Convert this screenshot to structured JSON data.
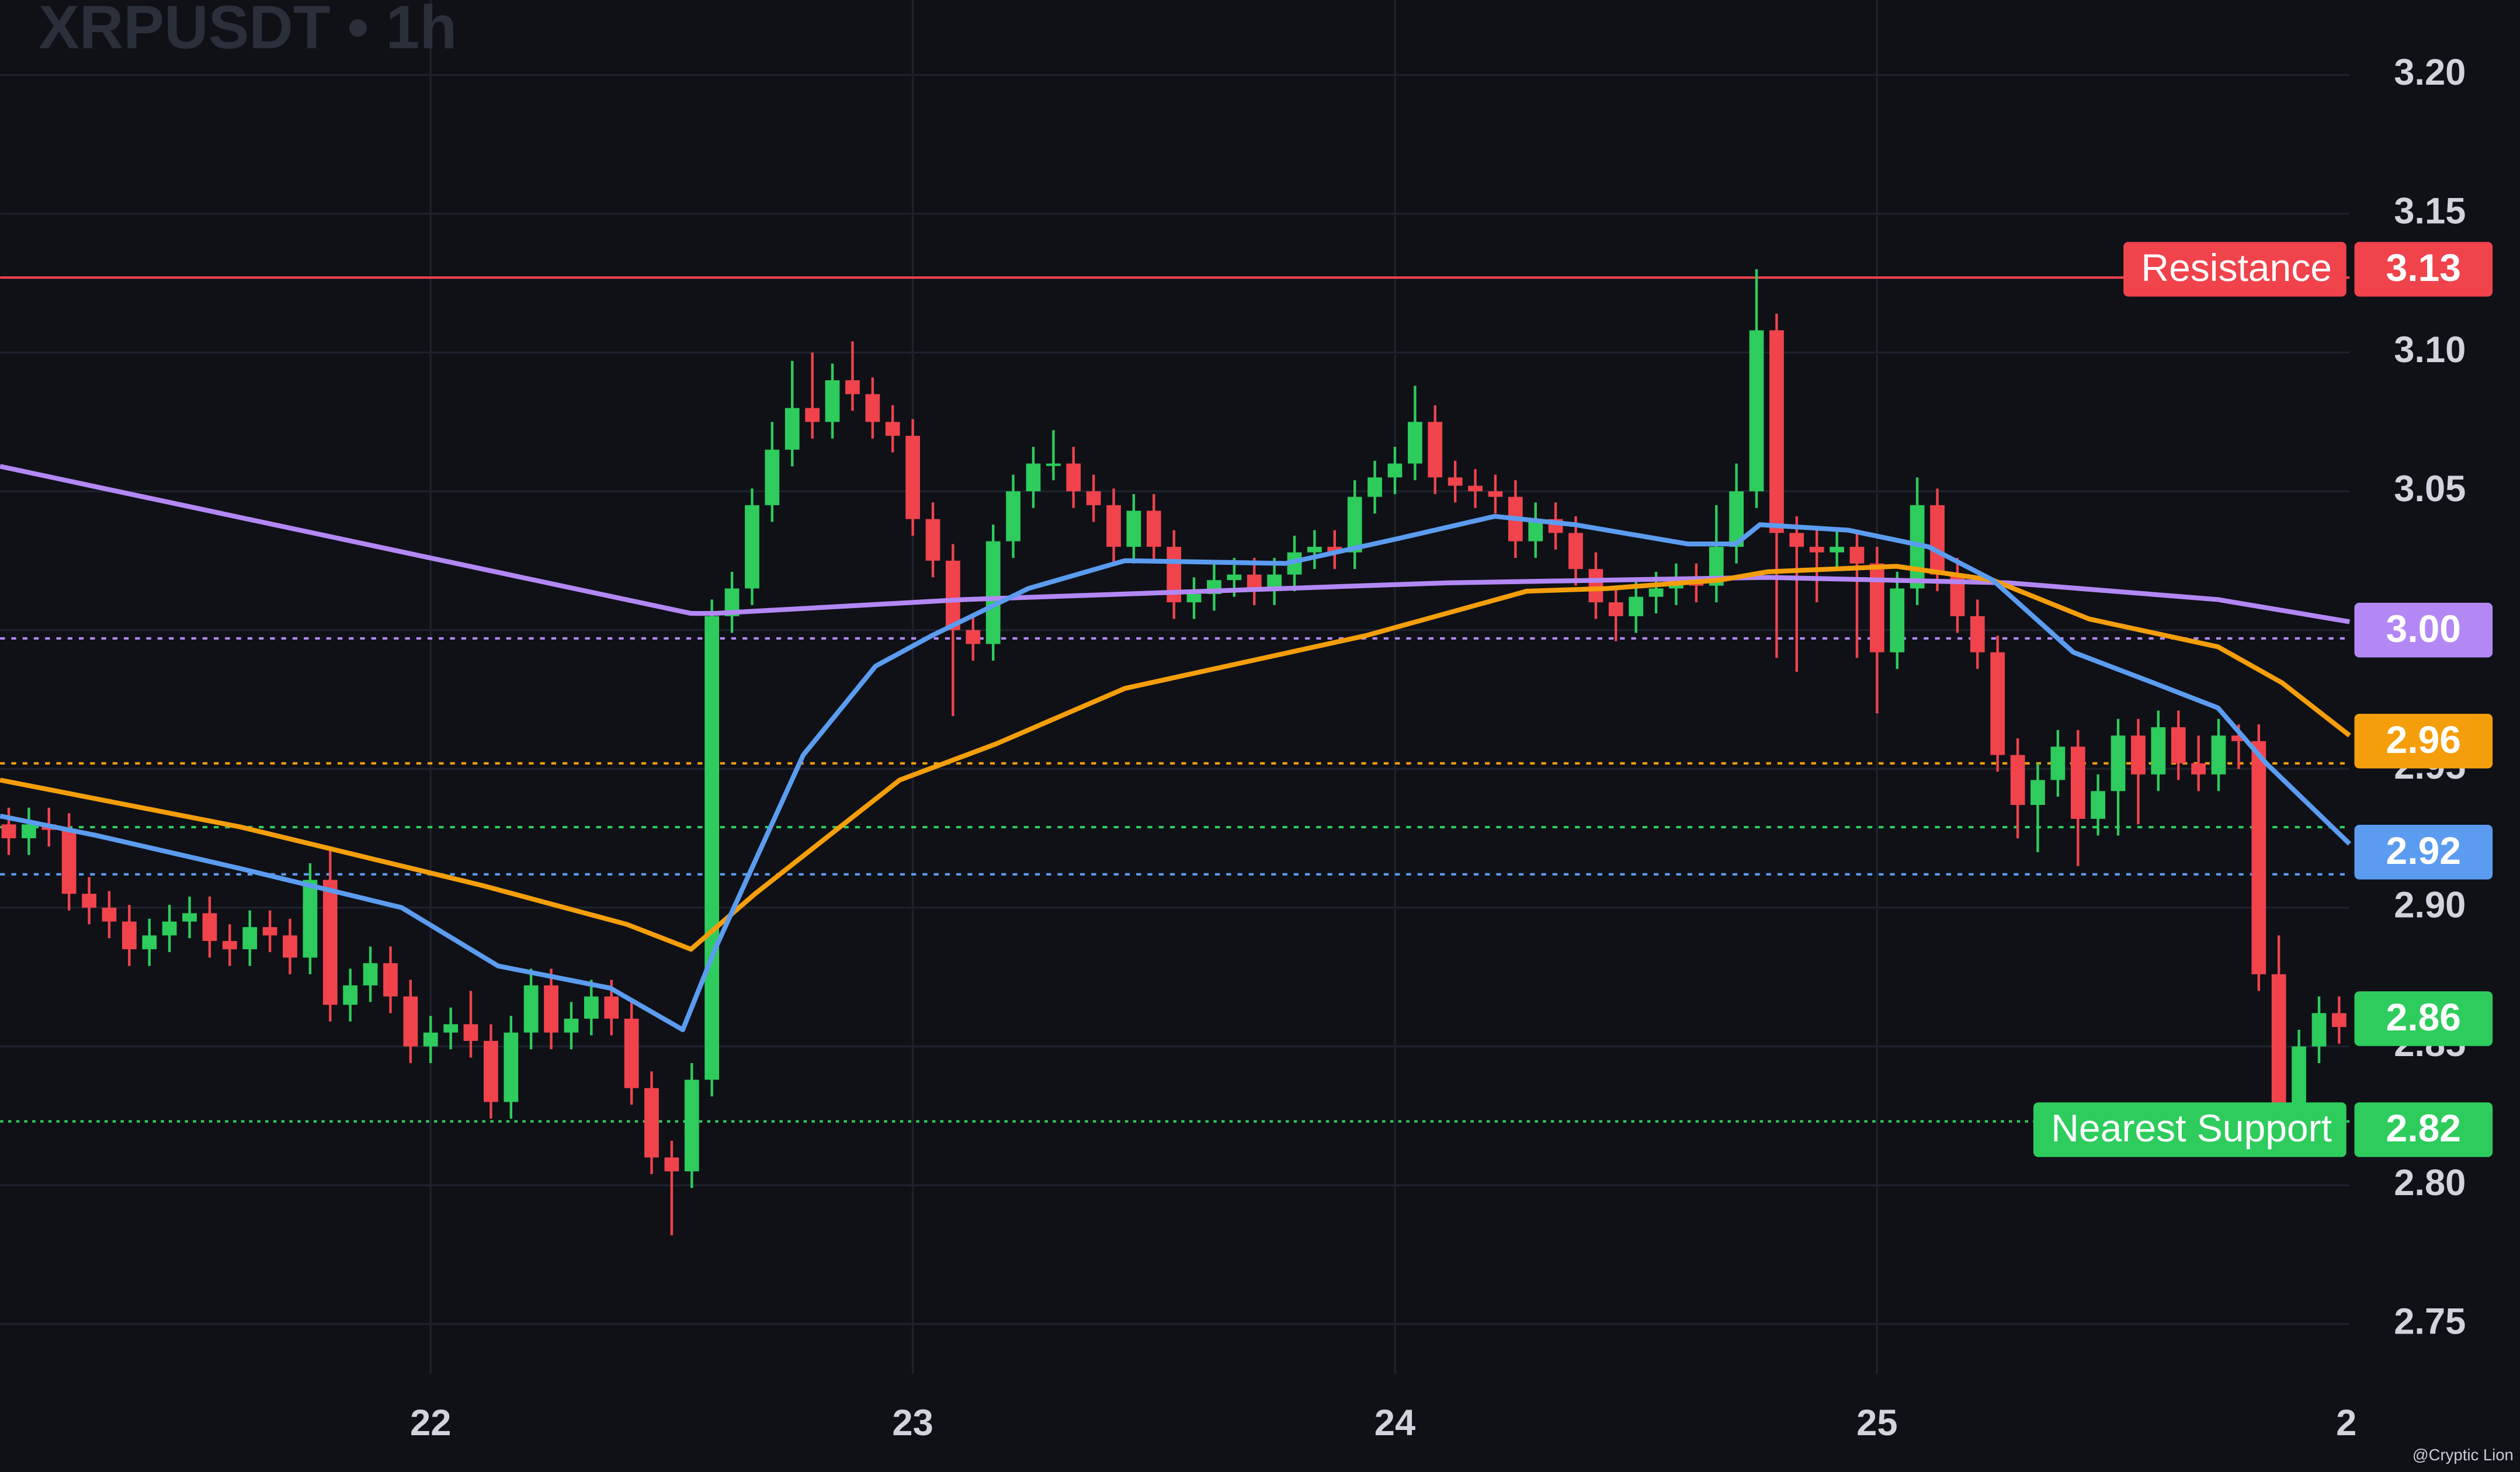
{
  "chart_data": {
    "type": "candlestick",
    "title": "XRPUSDT • 1h",
    "watermark": "@Cryptic Lion",
    "up_color": "#2ecc5c",
    "down_color": "#f0434c",
    "grid": true,
    "xlim": [
      21.107,
      25.98
    ],
    "xticks": [
      22,
      23,
      24,
      25,
      {
        "value": 26,
        "label": "2"
      }
    ],
    "ylim": [
      2.732,
      3.227
    ],
    "yticks": [
      2.75,
      {
        "value": 2.8,
        "label": "2.80"
      },
      2.85,
      {
        "value": 2.9,
        "label": "2.90"
      },
      2.95,
      {
        "value": 3,
        "label": "3.00"
      },
      3.05,
      {
        "value": 3.1,
        "label": "3.10"
      },
      3.15,
      {
        "value": 3.2,
        "label": "3.20"
      }
    ],
    "x": [
      21.125,
      21.1667,
      21.2083,
      21.25,
      21.2917,
      21.3333,
      21.375,
      21.4167,
      21.4583,
      21.5,
      21.5417,
      21.5833,
      21.625,
      21.6667,
      21.7083,
      21.75,
      21.7917,
      21.8333,
      21.875,
      21.9167,
      21.9583,
      22,
      22.0417,
      22.0833,
      22.125,
      22.1667,
      22.2083,
      22.25,
      22.2917,
      22.3333,
      22.375,
      22.4167,
      22.4583,
      22.5,
      22.5417,
      22.5833,
      22.625,
      22.6667,
      22.7083,
      22.75,
      22.7917,
      22.8333,
      22.875,
      22.9167,
      22.9583,
      23,
      23.0417,
      23.0833,
      23.125,
      23.1667,
      23.2083,
      23.25,
      23.2917,
      23.3333,
      23.375,
      23.4167,
      23.4583,
      23.5,
      23.5417,
      23.5833,
      23.625,
      23.6667,
      23.7083,
      23.75,
      23.7917,
      23.8333,
      23.875,
      23.9167,
      23.9583,
      24,
      24.0417,
      24.0833,
      24.125,
      24.1667,
      24.2083,
      24.25,
      24.2917,
      24.3333,
      24.375,
      24.4167,
      24.4583,
      24.5,
      24.5417,
      24.5833,
      24.625,
      24.6667,
      24.7083,
      24.75,
      24.7917,
      24.8333,
      24.875,
      24.9167,
      24.9583,
      25,
      25.0417,
      25.0833,
      25.125,
      25.1667,
      25.2083,
      25.25,
      25.2917,
      25.3333,
      25.375,
      25.4167,
      25.4583,
      25.5,
      25.5417,
      25.5833,
      25.625,
      25.6667,
      25.7083,
      25.75,
      25.7917,
      25.8333,
      25.875,
      25.9167,
      25.9583
    ],
    "open": [
      2.93,
      2.925,
      2.93,
      2.928,
      2.905,
      2.9,
      2.895,
      2.885,
      2.89,
      2.895,
      2.898,
      2.888,
      2.885,
      2.893,
      2.89,
      2.882,
      2.91,
      2.865,
      2.872,
      2.88,
      2.868,
      2.85,
      2.855,
      2.858,
      2.852,
      2.83,
      2.855,
      2.872,
      2.855,
      2.86,
      2.868,
      2.86,
      2.835,
      2.81,
      2.805,
      2.838,
      3.005,
      3.015,
      3.045,
      3.065,
      3.08,
      3.075,
      3.09,
      3.085,
      3.075,
      3.07,
      3.04,
      3.025,
      3.0,
      2.995,
      3.032,
      3.05,
      3.06,
      3.06,
      3.05,
      3.045,
      3.03,
      3.043,
      3.03,
      3.01,
      3.013,
      3.018,
      3.02,
      3.015,
      3.02,
      3.028,
      3.03,
      3.028,
      3.048,
      3.055,
      3.06,
      3.075,
      3.055,
      3.052,
      3.05,
      3.048,
      3.032,
      3.04,
      3.035,
      3.022,
      3.01,
      3.005,
      3.012,
      3.015,
      3.018,
      3.016,
      3.03,
      3.05,
      3.108,
      3.035,
      3.03,
      3.028,
      3.03,
      3.024,
      2.992,
      3.015,
      3.045,
      3.02,
      3.005,
      2.992,
      2.955,
      2.937,
      2.946,
      2.958,
      2.932,
      2.942,
      2.962,
      2.948,
      2.965,
      2.952,
      2.948,
      2.962,
      2.96,
      2.876,
      2.827,
      2.85,
      2.862
    ],
    "high": [
      2.936,
      2.936,
      2.936,
      2.934,
      2.911,
      2.906,
      2.901,
      2.896,
      2.901,
      2.904,
      2.904,
      2.894,
      2.899,
      2.899,
      2.896,
      2.916,
      2.921,
      2.878,
      2.886,
      2.886,
      2.874,
      2.861,
      2.864,
      2.87,
      2.858,
      2.861,
      2.878,
      2.878,
      2.866,
      2.874,
      2.874,
      2.866,
      2.841,
      2.816,
      2.844,
      3.011,
      3.021,
      3.051,
      3.075,
      3.097,
      3.1,
      3.096,
      3.104,
      3.091,
      3.081,
      3.076,
      3.046,
      3.031,
      3.006,
      3.038,
      3.056,
      3.066,
      3.072,
      3.066,
      3.056,
      3.051,
      3.049,
      3.049,
      3.036,
      3.019,
      3.024,
      3.026,
      3.026,
      3.026,
      3.034,
      3.036,
      3.036,
      3.054,
      3.061,
      3.066,
      3.088,
      3.081,
      3.061,
      3.058,
      3.056,
      3.054,
      3.046,
      3.046,
      3.041,
      3.028,
      3.016,
      3.018,
      3.021,
      3.024,
      3.024,
      3.045,
      3.06,
      3.13,
      3.114,
      3.041,
      3.036,
      3.036,
      3.036,
      3.03,
      3.021,
      3.055,
      3.051,
      3.026,
      3.011,
      2.998,
      2.961,
      2.952,
      2.964,
      2.964,
      2.948,
      2.968,
      2.968,
      2.971,
      2.971,
      2.962,
      2.968,
      2.966,
      2.966,
      2.89,
      2.856,
      2.868,
      2.868
    ],
    "low": [
      2.919,
      2.919,
      2.922,
      2.899,
      2.894,
      2.889,
      2.879,
      2.879,
      2.884,
      2.889,
      2.882,
      2.879,
      2.879,
      2.884,
      2.876,
      2.876,
      2.859,
      2.859,
      2.866,
      2.862,
      2.844,
      2.844,
      2.849,
      2.846,
      2.824,
      2.824,
      2.849,
      2.849,
      2.849,
      2.854,
      2.854,
      2.829,
      2.804,
      2.782,
      2.799,
      2.832,
      2.999,
      3.009,
      3.039,
      3.059,
      3.069,
      3.069,
      3.079,
      3.069,
      3.064,
      3.034,
      3.019,
      2.969,
      2.989,
      2.989,
      3.026,
      3.044,
      3.054,
      3.044,
      3.039,
      3.024,
      3.024,
      3.024,
      3.004,
      3.004,
      3.007,
      3.012,
      3.009,
      3.009,
      3.014,
      3.022,
      3.022,
      3.022,
      3.042,
      3.049,
      3.054,
      3.049,
      3.046,
      3.044,
      3.042,
      3.026,
      3.026,
      3.029,
      3.016,
      3.004,
      2.996,
      2.999,
      3.006,
      3.009,
      3.01,
      3.01,
      3.024,
      3.044,
      2.99,
      2.985,
      3.01,
      3.022,
      2.99,
      2.97,
      2.986,
      3.009,
      3.014,
      2.999,
      2.986,
      2.949,
      2.925,
      2.92,
      2.94,
      2.915,
      2.926,
      2.926,
      2.93,
      2.942,
      2.946,
      2.942,
      2.942,
      2.95,
      2.87,
      2.815,
      2.821,
      2.844,
      2.851
    ],
    "close": [
      2.925,
      2.93,
      2.928,
      2.905,
      2.9,
      2.895,
      2.885,
      2.89,
      2.895,
      2.898,
      2.888,
      2.885,
      2.893,
      2.89,
      2.882,
      2.91,
      2.865,
      2.872,
      2.88,
      2.868,
      2.85,
      2.855,
      2.858,
      2.852,
      2.83,
      2.855,
      2.872,
      2.855,
      2.86,
      2.868,
      2.86,
      2.835,
      2.81,
      2.805,
      2.838,
      3.005,
      3.015,
      3.045,
      3.065,
      3.08,
      3.075,
      3.09,
      3.085,
      3.075,
      3.07,
      3.04,
      3.025,
      3.0,
      2.995,
      3.032,
      3.05,
      3.06,
      3.06,
      3.05,
      3.045,
      3.03,
      3.043,
      3.03,
      3.01,
      3.013,
      3.018,
      3.02,
      3.015,
      3.02,
      3.028,
      3.03,
      3.028,
      3.048,
      3.055,
      3.06,
      3.075,
      3.055,
      3.052,
      3.05,
      3.048,
      3.032,
      3.04,
      3.035,
      3.022,
      3.01,
      3.005,
      3.012,
      3.015,
      3.018,
      3.016,
      3.03,
      3.05,
      3.108,
      3.035,
      3.03,
      3.028,
      3.03,
      3.024,
      2.992,
      3.015,
      3.045,
      3.02,
      3.005,
      2.992,
      2.955,
      2.937,
      2.946,
      2.958,
      2.932,
      2.942,
      2.962,
      2.948,
      2.965,
      2.952,
      2.948,
      2.962,
      2.96,
      2.876,
      2.827,
      2.85,
      2.862,
      2.857
    ],
    "lines": [
      {
        "color": "#b388f5",
        "x": [
          21.107,
          22.54,
          22.59,
          23.107,
          24.107,
          24.773,
          25.273,
          25.707,
          25.98
        ],
        "values": [
          3.059,
          3.006,
          3.006,
          3.011,
          3.017,
          3.019,
          3.017,
          3.011,
          3.003
        ]
      },
      {
        "color": "#f59e0b",
        "x": [
          21.107,
          21.607,
          22.107,
          22.407,
          22.54,
          22.673,
          22.973,
          23.173,
          23.44,
          23.94,
          24.273,
          24.44,
          24.673,
          24.773,
          25.04,
          25.24,
          25.44,
          25.707,
          25.84,
          25.98
        ],
        "values": [
          2.946,
          2.929,
          2.908,
          2.894,
          2.885,
          2.905,
          2.946,
          2.959,
          2.979,
          2.998,
          3.014,
          3.015,
          3.018,
          3.021,
          3.023,
          3.018,
          3.004,
          2.994,
          2.981,
          2.962
        ]
      },
      {
        "color": "#5b9cf0",
        "x": [
          21.107,
          21.307,
          21.607,
          21.94,
          22.14,
          22.373,
          22.523,
          22.59,
          22.773,
          22.923,
          23.04,
          23.24,
          23.44,
          23.773,
          24.007,
          24.207,
          24.373,
          24.607,
          24.707,
          24.757,
          24.94,
          25.107,
          25.24,
          25.407,
          25.573,
          25.707,
          25.807,
          25.98
        ],
        "values": [
          2.933,
          2.926,
          2.914,
          2.9,
          2.879,
          2.871,
          2.856,
          2.885,
          2.955,
          2.987,
          2.998,
          3.015,
          3.025,
          3.024,
          3.033,
          3.041,
          3.038,
          3.031,
          3.031,
          3.038,
          3.036,
          3.03,
          3.018,
          2.992,
          2.981,
          2.972,
          2.952,
          2.923
        ]
      }
    ],
    "price_lines": [
      {
        "value": 3.127,
        "color": "#f0434c",
        "dash": "none"
      },
      {
        "value": 2.997,
        "color": "#b388f5",
        "dash": "3 4"
      },
      {
        "value": 2.952,
        "color": "#f59e0b",
        "dash": "3 4"
      },
      {
        "value": 2.929,
        "color": "#2ecc5c",
        "dash": "3 4"
      },
      {
        "value": 2.912,
        "color": "#5b9cf0",
        "dash": "3 4"
      },
      {
        "value": 2.823,
        "color": "#2ecc5c",
        "dash": "2 3"
      }
    ],
    "badges": [
      {
        "value": 3.13,
        "label": "3.13",
        "color": "#f0434c",
        "text": "Resistance"
      },
      {
        "value": 3.0,
        "label": "3.00",
        "color": "#b388f5"
      },
      {
        "value": 2.96,
        "label": "2.96",
        "color": "#f59e0b"
      },
      {
        "value": 2.92,
        "label": "2.92",
        "color": "#5b9cf0"
      },
      {
        "value": 2.86,
        "label": "2.86",
        "color": "#2ecc5c"
      },
      {
        "value": 2.82,
        "label": "2.82",
        "color": "#2ecc5c",
        "text": "Nearest Support"
      }
    ]
  }
}
